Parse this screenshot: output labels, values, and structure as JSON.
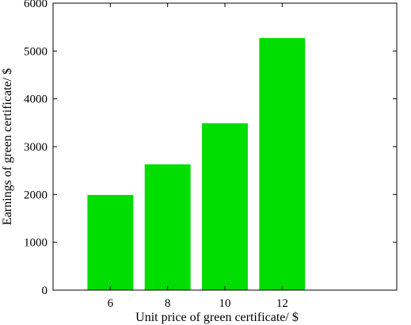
{
  "chart_data": {
    "type": "bar",
    "title": "",
    "xlabel": "Unit price of green certificate/ $",
    "ylabel": "Earnings of green certificate/ $",
    "categories": [
      "6",
      "8",
      "10",
      "12"
    ],
    "values": [
      1990,
      2630,
      3490,
      5270
    ],
    "ylim": [
      0,
      6000
    ],
    "yticks": [
      0,
      1000,
      2000,
      3000,
      4000,
      5000,
      6000
    ],
    "xlim": [
      4,
      16
    ],
    "x_positions": [
      6,
      8,
      10,
      12
    ],
    "bar_color": "#00dd00",
    "grid": false,
    "legend": "none"
  }
}
